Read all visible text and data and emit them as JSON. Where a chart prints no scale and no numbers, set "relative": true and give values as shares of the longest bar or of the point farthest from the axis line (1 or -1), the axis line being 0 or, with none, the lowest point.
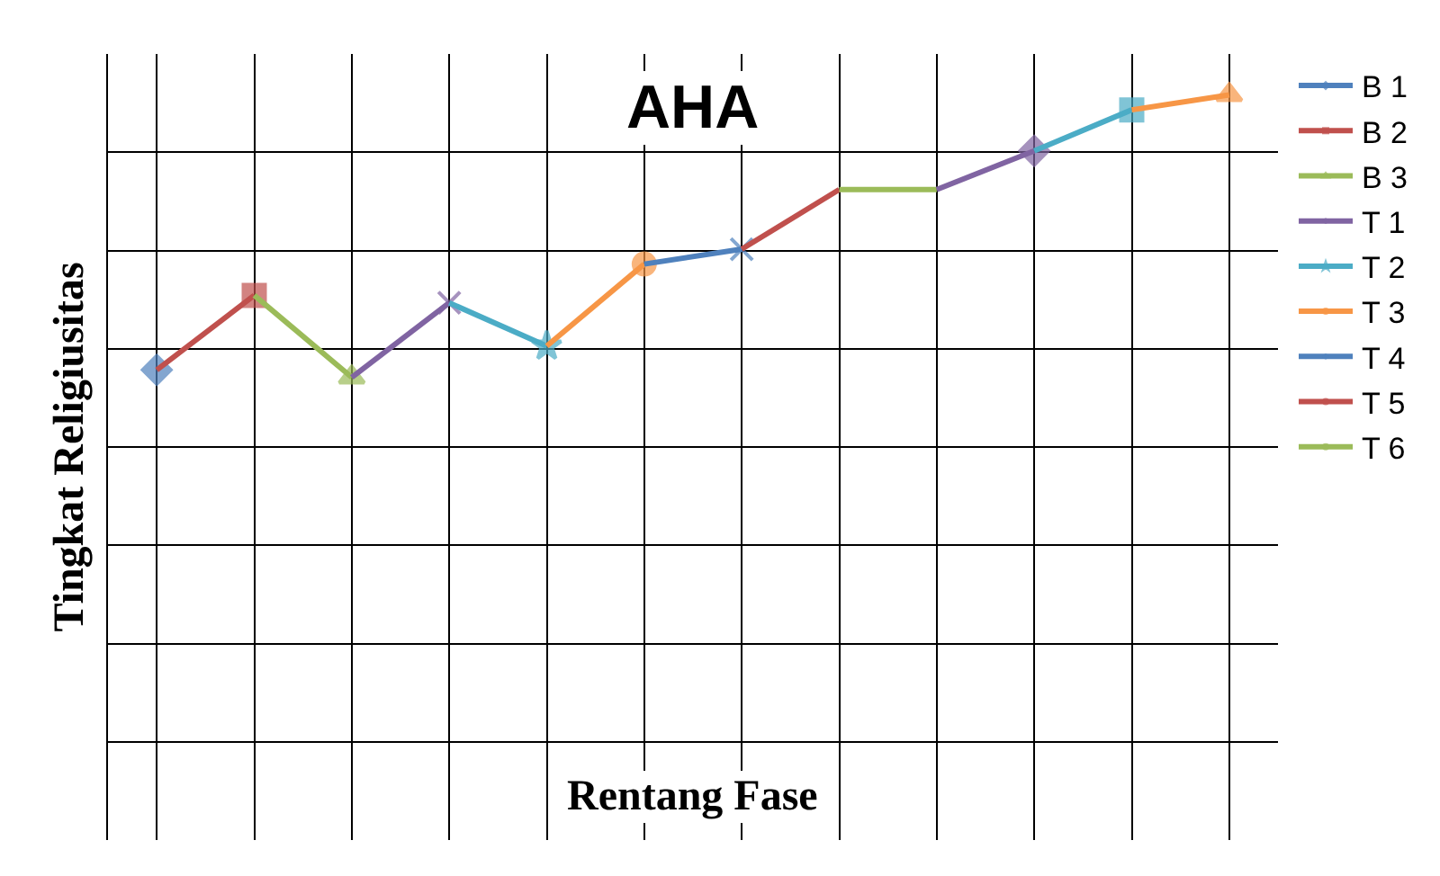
{
  "chart_data": {
    "type": "line",
    "title": "AHA",
    "xlabel": "Rentang Fase",
    "ylabel": "Tingkat Religiusitas",
    "relative": true,
    "grid": true,
    "legend": "right",
    "categories": [
      null,
      null,
      null,
      null,
      null,
      null,
      null,
      null,
      null,
      null,
      null,
      null
    ],
    "series": [
      {
        "name": "B 1",
        "color": "#4f81bd",
        "marker": "diamond",
        "values": [
          0.631,
          null,
          null,
          null,
          null,
          null,
          null,
          null,
          null,
          null,
          null,
          null
        ]
      },
      {
        "name": "B 2",
        "color": "#c0504d",
        "marker": "square",
        "values": [
          0.631,
          0.731,
          null,
          null,
          null,
          null,
          null,
          null,
          null,
          null,
          null,
          null
        ]
      },
      {
        "name": "B 3",
        "color": "#9bbb59",
        "marker": "triangle",
        "values": [
          null,
          0.731,
          0.621,
          null,
          null,
          null,
          null,
          null,
          null,
          null,
          null,
          null
        ]
      },
      {
        "name": "T 1",
        "color": "#8064a2",
        "marker": "cross",
        "values": [
          null,
          null,
          0.621,
          0.721,
          null,
          null,
          null,
          null,
          null,
          null,
          null,
          null
        ]
      },
      {
        "name": "T 2",
        "color": "#4bacc6",
        "marker": "star",
        "values": [
          null,
          null,
          null,
          0.721,
          0.663,
          null,
          null,
          null,
          null,
          null,
          null,
          null
        ]
      },
      {
        "name": "T 3",
        "color": "#f79646",
        "marker": "circle",
        "values": [
          null,
          null,
          null,
          null,
          0.663,
          0.773,
          null,
          null,
          null,
          null,
          null,
          null
        ]
      },
      {
        "name": "T 4",
        "color": "#4f81bd",
        "marker": "cross",
        "values": [
          null,
          null,
          null,
          null,
          null,
          0.773,
          0.793,
          null,
          null,
          null,
          null,
          null
        ]
      },
      {
        "name": "T 5",
        "color": "#c0504d",
        "marker": "none",
        "values": [
          null,
          null,
          null,
          null,
          null,
          null,
          0.793,
          0.873,
          null,
          null,
          null,
          null
        ]
      },
      {
        "name": "T 6",
        "color": "#9bbb59",
        "marker": "none",
        "values": [
          null,
          null,
          null,
          null,
          null,
          null,
          null,
          0.873,
          0.873,
          null,
          null,
          null
        ]
      },
      {
        "color": "#8064a2",
        "marker": "diamond",
        "values": [
          null,
          null,
          null,
          null,
          null,
          null,
          null,
          null,
          0.873,
          0.925,
          null,
          null
        ]
      },
      {
        "color": "#4bacc6",
        "marker": "square",
        "values": [
          null,
          null,
          null,
          null,
          null,
          null,
          null,
          null,
          null,
          0.925,
          0.98,
          null
        ]
      },
      {
        "color": "#f79646",
        "marker": "triangle",
        "values": [
          null,
          null,
          null,
          null,
          null,
          null,
          null,
          null,
          null,
          null,
          0.98,
          1
        ]
      }
    ]
  }
}
